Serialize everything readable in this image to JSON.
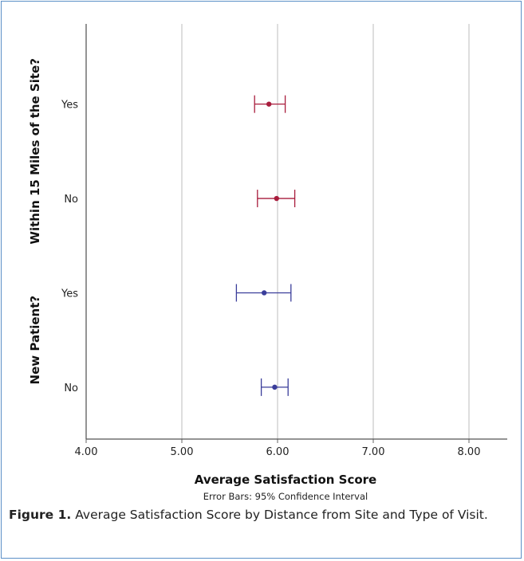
{
  "chart_data": {
    "type": "errorbar",
    "xlabel": "Average Satisfaction Score",
    "note": "Error Bars: 95% Confidence Interval",
    "xlim": [
      4.0,
      8.4
    ],
    "xticks": [
      "4.00",
      "5.00",
      "6.00",
      "7.00",
      "8.00"
    ],
    "xtick_values": [
      4,
      5,
      6,
      7,
      8
    ],
    "groups": [
      {
        "label": "Within 15 Miles of the Site?",
        "color": "#a81c3c",
        "rows": [
          {
            "category": "Yes",
            "mean": 5.91,
            "lower": 5.76,
            "upper": 6.08
          },
          {
            "category": "No",
            "mean": 5.99,
            "lower": 5.79,
            "upper": 6.18
          }
        ]
      },
      {
        "label": "New Patient?",
        "color": "#3a3d9a",
        "rows": [
          {
            "category": "Yes",
            "mean": 5.86,
            "lower": 5.57,
            "upper": 6.14
          },
          {
            "category": "No",
            "mean": 5.97,
            "lower": 5.83,
            "upper": 6.11
          }
        ]
      }
    ]
  },
  "caption": {
    "label": "Figure 1.",
    "text": "Average Satisfaction Score by Distance from Site and Type of Visit."
  }
}
